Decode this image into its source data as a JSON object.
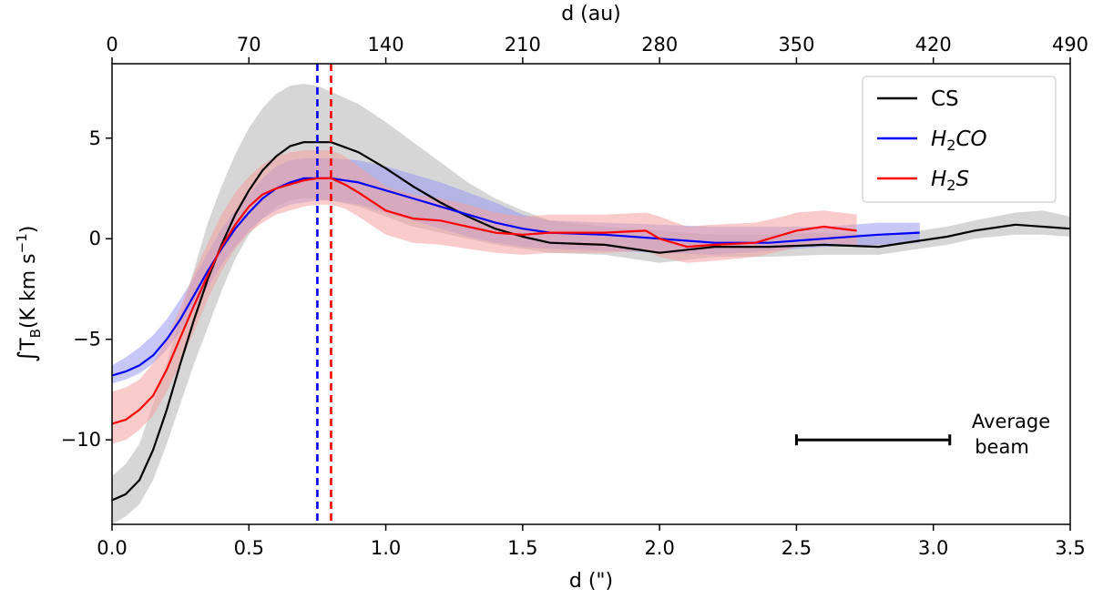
{
  "chart_data": {
    "type": "line",
    "xlabel": "d (\")",
    "ylabel": "∫T_B(K km s⁻¹)",
    "ylabel_parts": {
      "integral": "∫",
      "t": "T",
      "sub": "B",
      "rest": "(K km s",
      "sup": "−1",
      "close": ")"
    },
    "top_xlabel": "d (au)",
    "xlim": [
      0,
      3.5
    ],
    "ylim": [
      -14.2,
      8.7
    ],
    "xticks": [
      0.0,
      0.5,
      1.0,
      1.5,
      2.0,
      2.5,
      3.0,
      3.5
    ],
    "xtick_labels": [
      "0.0",
      "0.5",
      "1.0",
      "1.5",
      "2.0",
      "2.5",
      "3.0",
      "3.5"
    ],
    "yticks": [
      -10,
      -5,
      0,
      5
    ],
    "ytick_labels": [
      "−10",
      "−5",
      "0",
      "5"
    ],
    "top_xticks_au": [
      0,
      70,
      140,
      210,
      280,
      350,
      420,
      490
    ],
    "top_xtick_labels": [
      "0",
      "70",
      "140",
      "210",
      "280",
      "350",
      "420",
      "490"
    ],
    "au_per_arcsec": 140,
    "legend_position": "top-right",
    "series": [
      {
        "name": "CS",
        "label": "CS",
        "color": "#000000",
        "band_color": "#c8c8c8",
        "x": [
          0.0,
          0.05,
          0.1,
          0.15,
          0.2,
          0.25,
          0.3,
          0.35,
          0.4,
          0.45,
          0.5,
          0.55,
          0.6,
          0.65,
          0.7,
          0.75,
          0.8,
          0.9,
          1.0,
          1.1,
          1.2,
          1.3,
          1.4,
          1.5,
          1.6,
          1.8,
          2.0,
          2.2,
          2.4,
          2.6,
          2.8,
          2.95,
          3.05,
          3.15,
          3.3,
          3.4,
          3.5
        ],
        "y": [
          -13.0,
          -12.7,
          -12.0,
          -10.5,
          -8.5,
          -6.2,
          -4.0,
          -2.0,
          -0.3,
          1.2,
          2.4,
          3.4,
          4.1,
          4.6,
          4.8,
          4.8,
          4.8,
          4.3,
          3.5,
          2.6,
          1.8,
          1.1,
          0.5,
          0.1,
          -0.2,
          -0.3,
          -0.7,
          -0.4,
          -0.4,
          -0.3,
          -0.4,
          -0.1,
          0.1,
          0.4,
          0.7,
          0.6,
          0.5
        ],
        "band_low": [
          -14.2,
          -13.8,
          -13.2,
          -12.0,
          -10.2,
          -8.2,
          -6.2,
          -4.4,
          -2.6,
          -1.0,
          0.2,
          1.0,
          1.6,
          1.9,
          2.0,
          2.0,
          1.9,
          1.6,
          1.1,
          0.6,
          0.3,
          0.0,
          -0.3,
          -0.5,
          -0.7,
          -0.8,
          -1.2,
          -0.9,
          -0.9,
          -0.8,
          -0.8,
          -0.5,
          -0.3,
          0.0,
          0.2,
          0.2,
          0.1
        ],
        "band_high": [
          -11.8,
          -11.2,
          -10.2,
          -8.2,
          -6.2,
          -3.8,
          -1.5,
          0.8,
          2.6,
          4.2,
          5.5,
          6.5,
          7.2,
          7.6,
          7.7,
          7.6,
          7.3,
          6.7,
          5.8,
          4.8,
          3.8,
          2.8,
          2.0,
          1.4,
          0.9,
          0.6,
          0.4,
          0.2,
          0.2,
          0.3,
          0.2,
          0.4,
          0.6,
          0.9,
          1.3,
          1.4,
          1.1
        ]
      },
      {
        "name": "H2CO",
        "label_base": "H",
        "label_sub": "2",
        "label_rest": "CO",
        "color": "#0000ff",
        "band_color": "#9999f2",
        "x": [
          0.0,
          0.05,
          0.1,
          0.15,
          0.2,
          0.25,
          0.3,
          0.35,
          0.4,
          0.45,
          0.5,
          0.55,
          0.6,
          0.65,
          0.7,
          0.75,
          0.8,
          0.9,
          1.0,
          1.1,
          1.2,
          1.3,
          1.4,
          1.5,
          1.6,
          1.8,
          2.0,
          2.2,
          2.4,
          2.6,
          2.8,
          2.95
        ],
        "y": [
          -6.8,
          -6.6,
          -6.3,
          -5.8,
          -5.0,
          -4.0,
          -2.8,
          -1.6,
          -0.5,
          0.5,
          1.3,
          2.0,
          2.5,
          2.8,
          3.0,
          3.0,
          3.0,
          2.8,
          2.4,
          2.0,
          1.6,
          1.2,
          0.8,
          0.5,
          0.3,
          0.2,
          0.0,
          -0.2,
          -0.2,
          0.0,
          0.2,
          0.3
        ],
        "band_low": [
          -7.2,
          -7.0,
          -6.7,
          -6.2,
          -5.5,
          -4.6,
          -3.5,
          -2.4,
          -1.3,
          -0.4,
          0.4,
          1.0,
          1.4,
          1.7,
          1.8,
          1.9,
          1.9,
          1.7,
          1.3,
          0.9,
          0.5,
          0.1,
          -0.2,
          -0.4,
          -0.5,
          -0.6,
          -0.7,
          -0.8,
          -0.6,
          -0.4,
          -0.3,
          -0.2
        ],
        "band_high": [
          -6.3,
          -5.9,
          -5.4,
          -4.8,
          -4.0,
          -3.0,
          -1.9,
          -0.7,
          0.5,
          1.4,
          2.2,
          3.0,
          3.6,
          3.9,
          4.0,
          4.0,
          4.0,
          3.9,
          3.6,
          3.2,
          2.8,
          2.3,
          1.8,
          1.2,
          0.9,
          0.8,
          0.7,
          0.6,
          0.6,
          0.6,
          0.8,
          0.8
        ]
      },
      {
        "name": "H2S",
        "label_base": "H",
        "label_sub": "2",
        "label_rest": "S",
        "color": "#ff0000",
        "band_color": "#f4a0a0",
        "x": [
          0.0,
          0.05,
          0.1,
          0.15,
          0.2,
          0.25,
          0.3,
          0.35,
          0.4,
          0.45,
          0.5,
          0.55,
          0.6,
          0.65,
          0.7,
          0.75,
          0.8,
          0.85,
          0.9,
          1.0,
          1.1,
          1.2,
          1.3,
          1.4,
          1.5,
          1.6,
          1.8,
          1.95,
          2.0,
          2.1,
          2.2,
          2.35,
          2.45,
          2.5,
          2.6,
          2.72
        ],
        "y": [
          -9.2,
          -9.0,
          -8.5,
          -7.8,
          -6.5,
          -4.9,
          -3.3,
          -1.8,
          -0.4,
          0.7,
          1.6,
          2.2,
          2.5,
          2.7,
          2.9,
          3.0,
          3.0,
          2.7,
          2.3,
          1.4,
          1.0,
          0.9,
          0.6,
          0.3,
          0.2,
          0.3,
          0.3,
          0.4,
          0.0,
          -0.4,
          -0.3,
          -0.2,
          0.2,
          0.4,
          0.6,
          0.4
        ],
        "band_low": [
          -10.2,
          -10.0,
          -9.5,
          -8.8,
          -7.6,
          -6.2,
          -4.6,
          -3.0,
          -1.6,
          -0.5,
          0.3,
          0.8,
          1.2,
          1.4,
          1.6,
          1.7,
          1.7,
          1.5,
          1.1,
          0.2,
          -0.2,
          -0.3,
          -0.5,
          -0.7,
          -0.8,
          -0.7,
          -0.7,
          -0.6,
          -0.9,
          -1.2,
          -1.1,
          -0.9,
          -0.6,
          -0.4,
          -0.2,
          -0.3
        ],
        "band_high": [
          -7.6,
          -7.4,
          -7.0,
          -6.2,
          -5.0,
          -3.4,
          -1.7,
          -0.2,
          1.2,
          2.3,
          3.1,
          3.7,
          4.1,
          4.3,
          4.4,
          4.4,
          4.4,
          4.1,
          3.6,
          2.6,
          2.2,
          2.0,
          1.7,
          1.3,
          1.1,
          1.2,
          1.2,
          1.3,
          1.1,
          0.6,
          0.7,
          0.8,
          1.1,
          1.3,
          1.4,
          1.2
        ]
      }
    ],
    "vlines": [
      {
        "x": 0.75,
        "color": "#0000ff",
        "style": "dashed",
        "series": "H2CO"
      },
      {
        "x": 0.8,
        "color": "#ff0000",
        "style": "dashed",
        "series": "H2S"
      }
    ],
    "beam_annotation": {
      "x_start": 2.5,
      "x_end": 3.06,
      "y": -10.0,
      "text_line1": "Average",
      "text_line2": "beam"
    }
  }
}
